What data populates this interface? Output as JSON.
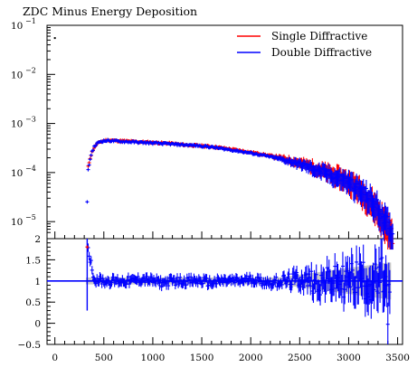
{
  "chart_data": [
    {
      "type": "line",
      "title": "ZDC Minus Energy Deposition",
      "xlabel": "",
      "ylabel": "",
      "xlim": [
        -80,
        3550
      ],
      "ylim": [
        4.5e-06,
        0.1
      ],
      "yscale": "log",
      "grid": false,
      "legend_position": "top-right",
      "y_tick_labels": [
        "10",
        "10",
        "10",
        "10",
        "10"
      ],
      "y_tick_exponents": [
        "−5",
        "−4",
        "−3",
        "−2",
        "−1"
      ],
      "y_tick_values": [
        1e-05,
        0.0001,
        0.001,
        0.01,
        0.1
      ],
      "colors": {
        "single": "#ff0000",
        "double": "#0000ff"
      },
      "series": [
        {
          "name": "Single Diffractive",
          "x": [
            330,
            340,
            360,
            380,
            400,
            430,
            460,
            500,
            550,
            600,
            700,
            800,
            900,
            1000,
            1100,
            1200,
            1300,
            1400,
            1500,
            1600,
            1700,
            1800,
            1900,
            2000,
            2100,
            2200,
            2300,
            2400,
            2500,
            2600,
            2700,
            2800,
            2900,
            3000,
            3050,
            3100,
            3150,
            3200,
            3250,
            3300,
            3350,
            3400,
            3450
          ],
          "y": [
            3e-06,
            0.00013,
            0.0002,
            0.00026,
            0.00032,
            0.00038,
            0.00042,
            0.00045,
            0.00046,
            0.00045,
            0.00044,
            0.00043,
            0.00042,
            0.00041,
            0.0004,
            0.00039,
            0.00037,
            0.00036,
            0.00035,
            0.00034,
            0.00032,
            0.0003,
            0.00028,
            0.00026,
            0.00024,
            0.00022,
            0.0002,
            0.00018,
            0.00016,
            0.00014,
            0.00012,
            0.0001,
            8.5e-05,
            7e-05,
            6e-05,
            5e-05,
            4e-05,
            3.2e-05,
            2.5e-05,
            1.8e-05,
            1.2e-05,
            8e-06,
            5e-06
          ]
        },
        {
          "name": "Double Diffractive",
          "x": [
            330,
            340,
            360,
            380,
            400,
            430,
            460,
            500,
            550,
            600,
            700,
            800,
            900,
            1000,
            1100,
            1200,
            1300,
            1400,
            1500,
            1600,
            1700,
            1800,
            1900,
            2000,
            2100,
            2200,
            2300,
            2400,
            2500,
            2600,
            2700,
            2800,
            2900,
            3000,
            3050,
            3100,
            3150,
            3200,
            3250,
            3300,
            3350,
            3400,
            3450
          ],
          "y": [
            2.5e-05,
            0.00011,
            0.00019,
            0.00027,
            0.00033,
            0.00039,
            0.00043,
            0.00044,
            0.00045,
            0.00044,
            0.00043,
            0.00042,
            0.00041,
            0.0004,
            0.00039,
            0.00038,
            0.00037,
            0.00036,
            0.00035,
            0.00033,
            0.00031,
            0.00029,
            0.00027,
            0.00025,
            0.00023,
            0.00021,
            0.00019,
            0.00017,
            0.00015,
            0.00013,
            0.00011,
            9.5e-05,
            8e-05,
            6.8e-05,
            5.8e-05,
            4.8e-05,
            4e-05,
            3.3e-05,
            2.6e-05,
            2e-05,
            1.4e-05,
            9e-06,
            6e-06
          ]
        }
      ],
      "outlier_marker": {
        "x": 0,
        "y": 0.055
      }
    },
    {
      "type": "line",
      "title": "",
      "xlabel": "",
      "ylabel": "",
      "xlim": [
        -80,
        3550
      ],
      "ylim": [
        -0.5,
        2
      ],
      "grid": false,
      "x_ticks": [
        0,
        500,
        1000,
        1500,
        2000,
        2500,
        3000,
        3500
      ],
      "x_tick_labels": [
        "0",
        "500",
        "1000",
        "1500",
        "2000",
        "2500",
        "3000",
        "3500"
      ],
      "y_ticks": [
        -0.5,
        0,
        0.5,
        1,
        1.5,
        2
      ],
      "y_tick_labels": [
        "−0.5",
        "0",
        "0.5",
        "1",
        "1.5",
        "2"
      ],
      "reference_line": 1,
      "series": [
        {
          "name": "",
          "x": [
            330,
            400,
            500,
            600,
            700,
            800,
            900,
            1000,
            1100,
            1200,
            1300,
            1400,
            1500,
            1600,
            1700,
            1800,
            1900,
            2000,
            2100,
            2200,
            2300,
            2400,
            2500,
            2600,
            2700,
            2800,
            2900,
            3000,
            3100,
            3200,
            3300,
            3350,
            3400
          ],
          "y": [
            1.9,
            1.05,
            1.0,
            1.0,
            1.0,
            1.0,
            1.05,
            1.0,
            0.95,
            1.0,
            1.0,
            1.0,
            1.0,
            0.95,
            1.0,
            1.0,
            1.0,
            1.05,
            1.0,
            0.95,
            1.0,
            1.0,
            1.05,
            1.0,
            0.95,
            1.0,
            1.0,
            1.0,
            1.1,
            1.0,
            0.9,
            1.1,
            0.5
          ]
        }
      ]
    }
  ]
}
